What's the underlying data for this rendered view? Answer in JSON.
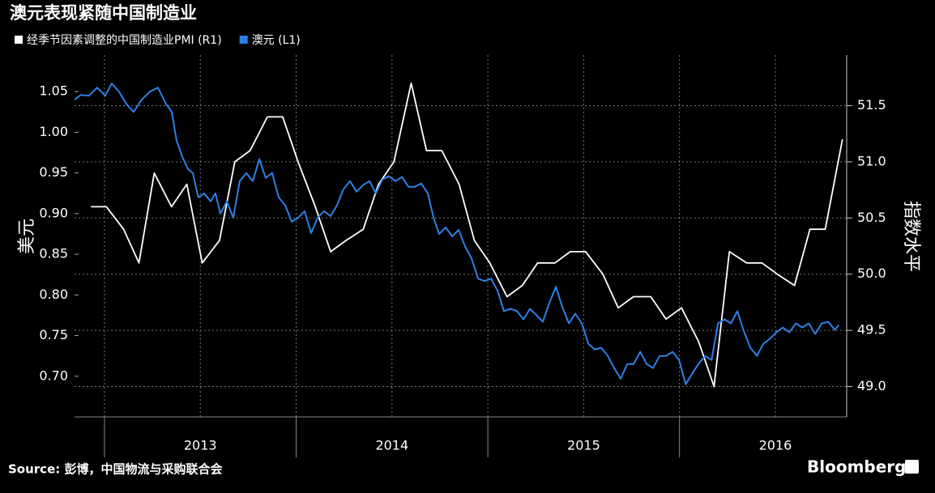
{
  "chart_data": {
    "type": "line",
    "title": "澳元表现紧随中国制造业",
    "y_label": "美元",
    "y2_label": "指数水平",
    "source": "Source: 彭博，中国物流与采购联合会",
    "brand": "Bloomberg",
    "xlim": [
      2012.844,
      2016.872
    ],
    "xticks": [
      {
        "value": 2013.5,
        "label": "2013"
      },
      {
        "value": 2014.5,
        "label": "2014"
      },
      {
        "value": 2015.5,
        "label": "2015"
      },
      {
        "value": 2016.5,
        "label": "2016"
      }
    ],
    "ylim": [
      0.65,
      1.095
    ],
    "yticks": [
      {
        "value": 0.7,
        "label": "0.70"
      },
      0.75,
      {
        "value": 0.8,
        "label": "0.80"
      },
      0.85,
      {
        "value": 0.9,
        "label": "0.90"
      },
      0.95,
      {
        "value": 1.0,
        "label": "1.00"
      },
      1.05
    ],
    "y2lim": [
      48.73,
      51.95
    ],
    "y2ticks": [
      {
        "value": 49.0,
        "label": "49.0"
      },
      49.5,
      {
        "value": 50.0,
        "label": "50.0"
      },
      50.5,
      {
        "value": 51.0,
        "label": "51.0"
      },
      51.5
    ],
    "grid": true,
    "legend": "top-left",
    "series": [
      {
        "name": "经季节因素调整的中国制造业PMI (R1)",
        "color": "#ffffff",
        "axis": "y2",
        "x": [
          2012.93,
          2013.01,
          2013.1,
          2013.18,
          2013.26,
          2013.35,
          2013.43,
          2013.51,
          2013.6,
          2013.68,
          2013.76,
          2013.85,
          2013.93,
          2014.01,
          2014.1,
          2014.18,
          2014.26,
          2014.35,
          2014.43,
          2014.51,
          2014.6,
          2014.68,
          2014.76,
          2014.85,
          2014.93,
          2015.01,
          2015.1,
          2015.18,
          2015.26,
          2015.35,
          2015.43,
          2015.51,
          2015.6,
          2015.68,
          2015.76,
          2015.85,
          2015.93,
          2016.01,
          2016.1,
          2016.18,
          2016.26,
          2016.35,
          2016.43,
          2016.51,
          2016.6,
          2016.68,
          2016.76,
          2016.85
        ],
        "values": [
          50.6,
          50.6,
          50.4,
          50.1,
          50.9,
          50.6,
          50.8,
          50.1,
          50.3,
          51.0,
          51.1,
          51.4,
          51.4,
          51.0,
          50.6,
          50.2,
          50.3,
          50.4,
          50.8,
          51.0,
          51.7,
          51.1,
          51.1,
          50.8,
          50.3,
          50.1,
          49.8,
          49.9,
          50.1,
          50.1,
          50.2,
          50.2,
          50.0,
          49.7,
          49.8,
          49.8,
          49.6,
          49.7,
          49.4,
          49.0,
          50.2,
          50.1,
          50.1,
          50.0,
          49.9,
          50.4,
          50.4,
          51.2
        ]
      },
      {
        "name": "澳元 (L1)",
        "color": "#2d80e6",
        "axis": "y",
        "x": [
          2012.844,
          2012.877,
          2012.92,
          2012.962,
          2013.004,
          2013.038,
          2013.076,
          2013.114,
          2013.152,
          2013.194,
          2013.237,
          2013.279,
          2013.321,
          2013.351,
          2013.376,
          2013.406,
          2013.435,
          2013.461,
          2013.49,
          2013.52,
          2013.554,
          2013.579,
          2013.605,
          2013.638,
          2013.672,
          2013.706,
          2013.74,
          2013.774,
          2013.808,
          2013.841,
          2013.875,
          2013.909,
          2013.943,
          2013.977,
          2014.011,
          2014.044,
          2014.078,
          2014.112,
          2014.146,
          2014.18,
          2014.213,
          2014.247,
          2014.281,
          2014.315,
          2014.349,
          2014.383,
          2014.416,
          2014.45,
          2014.484,
          2014.518,
          2014.552,
          2014.586,
          2014.619,
          2014.653,
          2014.687,
          2014.717,
          2014.746,
          2014.78,
          2014.814,
          2014.848,
          2014.881,
          2014.915,
          2014.949,
          2014.983,
          2015.017,
          2015.051,
          2015.084,
          2015.118,
          2015.152,
          2015.186,
          2015.22,
          2015.254,
          2015.287,
          2015.321,
          2015.355,
          2015.389,
          2015.423,
          2015.456,
          2015.49,
          2015.524,
          2015.558,
          2015.592,
          2015.626,
          2015.659,
          2015.693,
          2015.727,
          2015.761,
          2015.795,
          2015.829,
          2015.862,
          2015.896,
          2015.93,
          2015.964,
          2015.998,
          2016.032,
          2016.065,
          2016.099,
          2016.133,
          2016.167,
          2016.201,
          2016.235,
          2016.268,
          2016.302,
          2016.336,
          2016.37,
          2016.404,
          2016.437,
          2016.471,
          2016.505,
          2016.539,
          2016.573,
          2016.607,
          2016.64,
          2016.674,
          2016.708,
          2016.742,
          2016.776,
          2016.81,
          2016.831
        ],
        "values": [
          1.04,
          1.046,
          1.045,
          1.055,
          1.045,
          1.06,
          1.05,
          1.035,
          1.025,
          1.04,
          1.05,
          1.055,
          1.035,
          1.025,
          0.99,
          0.97,
          0.955,
          0.95,
          0.92,
          0.925,
          0.915,
          0.925,
          0.9,
          0.915,
          0.895,
          0.94,
          0.95,
          0.94,
          0.967,
          0.944,
          0.95,
          0.92,
          0.91,
          0.89,
          0.895,
          0.903,
          0.876,
          0.895,
          0.903,
          0.897,
          0.91,
          0.93,
          0.94,
          0.927,
          0.935,
          0.94,
          0.925,
          0.942,
          0.946,
          0.94,
          0.945,
          0.933,
          0.933,
          0.937,
          0.925,
          0.895,
          0.875,
          0.883,
          0.872,
          0.88,
          0.86,
          0.845,
          0.82,
          0.817,
          0.82,
          0.805,
          0.78,
          0.783,
          0.78,
          0.77,
          0.783,
          0.775,
          0.767,
          0.79,
          0.81,
          0.785,
          0.765,
          0.777,
          0.765,
          0.74,
          0.733,
          0.735,
          0.725,
          0.71,
          0.697,
          0.715,
          0.715,
          0.73,
          0.715,
          0.71,
          0.725,
          0.725,
          0.73,
          0.72,
          0.69,
          0.703,
          0.715,
          0.725,
          0.72,
          0.765,
          0.77,
          0.765,
          0.78,
          0.755,
          0.735,
          0.725,
          0.74,
          0.746,
          0.754,
          0.76,
          0.754,
          0.765,
          0.76,
          0.765,
          0.752,
          0.765,
          0.767,
          0.757,
          0.763
        ]
      }
    ]
  }
}
